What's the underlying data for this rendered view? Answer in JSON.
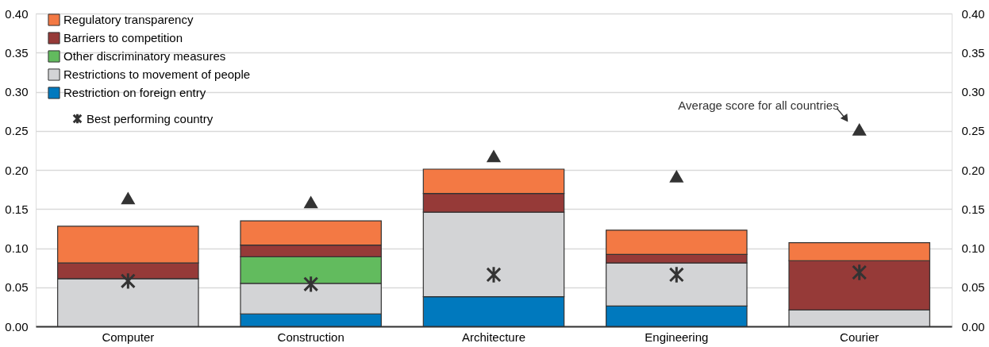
{
  "chart_data": {
    "type": "bar",
    "stacked": true,
    "categories": [
      "Computer",
      "Construction",
      "Architecture",
      "Engineering",
      "Courier"
    ],
    "series": [
      {
        "name": "Restriction on foreign entry",
        "color": "#0079be",
        "values": [
          0,
          0.016,
          0.038,
          0.026,
          0
        ]
      },
      {
        "name": "Restrictions to movement of people",
        "color": "#d3d4d6",
        "values": [
          0.061,
          0.039,
          0.108,
          0.055,
          0.021
        ]
      },
      {
        "name": "Other discriminatory measures",
        "color": "#62bb5e",
        "values": [
          0,
          0.034,
          0,
          0,
          0
        ]
      },
      {
        "name": "Barriers to competition",
        "color": "#963a38",
        "values": [
          0.02,
          0.015,
          0.024,
          0.011,
          0.063
        ]
      },
      {
        "name": "Regulatory transparency",
        "color": "#f37944",
        "values": [
          0.047,
          0.031,
          0.031,
          0.031,
          0.023
        ]
      },
      {
        "name": "Best performing country",
        "type": "scatter",
        "marker": "cross",
        "color": "#333333",
        "values": [
          0.058,
          0.054,
          0.066,
          0.066,
          0.069
        ]
      },
      {
        "name": "Average score for all countries",
        "type": "scatter",
        "marker": "triangle",
        "color": "#333333",
        "values": [
          0.164,
          0.159,
          0.218,
          0.192,
          0.252
        ]
      }
    ],
    "ylim": [
      0,
      0.4
    ],
    "yticks": [
      {
        "value": 0,
        "label": "0.00"
      },
      0.05,
      {
        "value": 0.1,
        "label": "0.10"
      },
      0.15,
      {
        "value": 0.2,
        "label": "0.20"
      },
      0.25,
      {
        "value": 0.3,
        "label": "0.30"
      },
      0.35,
      {
        "value": 0.4,
        "label": "0.40"
      }
    ],
    "y2lim": [
      0,
      0.4
    ],
    "y2ticks": [
      {
        "value": 0,
        "label": "0.00"
      },
      0.05,
      {
        "value": 0.1,
        "label": "0.10"
      },
      0.15,
      {
        "value": 0.2,
        "label": "0.20"
      },
      0.25,
      {
        "value": 0.3,
        "label": "0.30"
      },
      0.35,
      {
        "value": 0.4,
        "label": "0.40"
      }
    ],
    "grid": "y",
    "legend": "top left"
  }
}
